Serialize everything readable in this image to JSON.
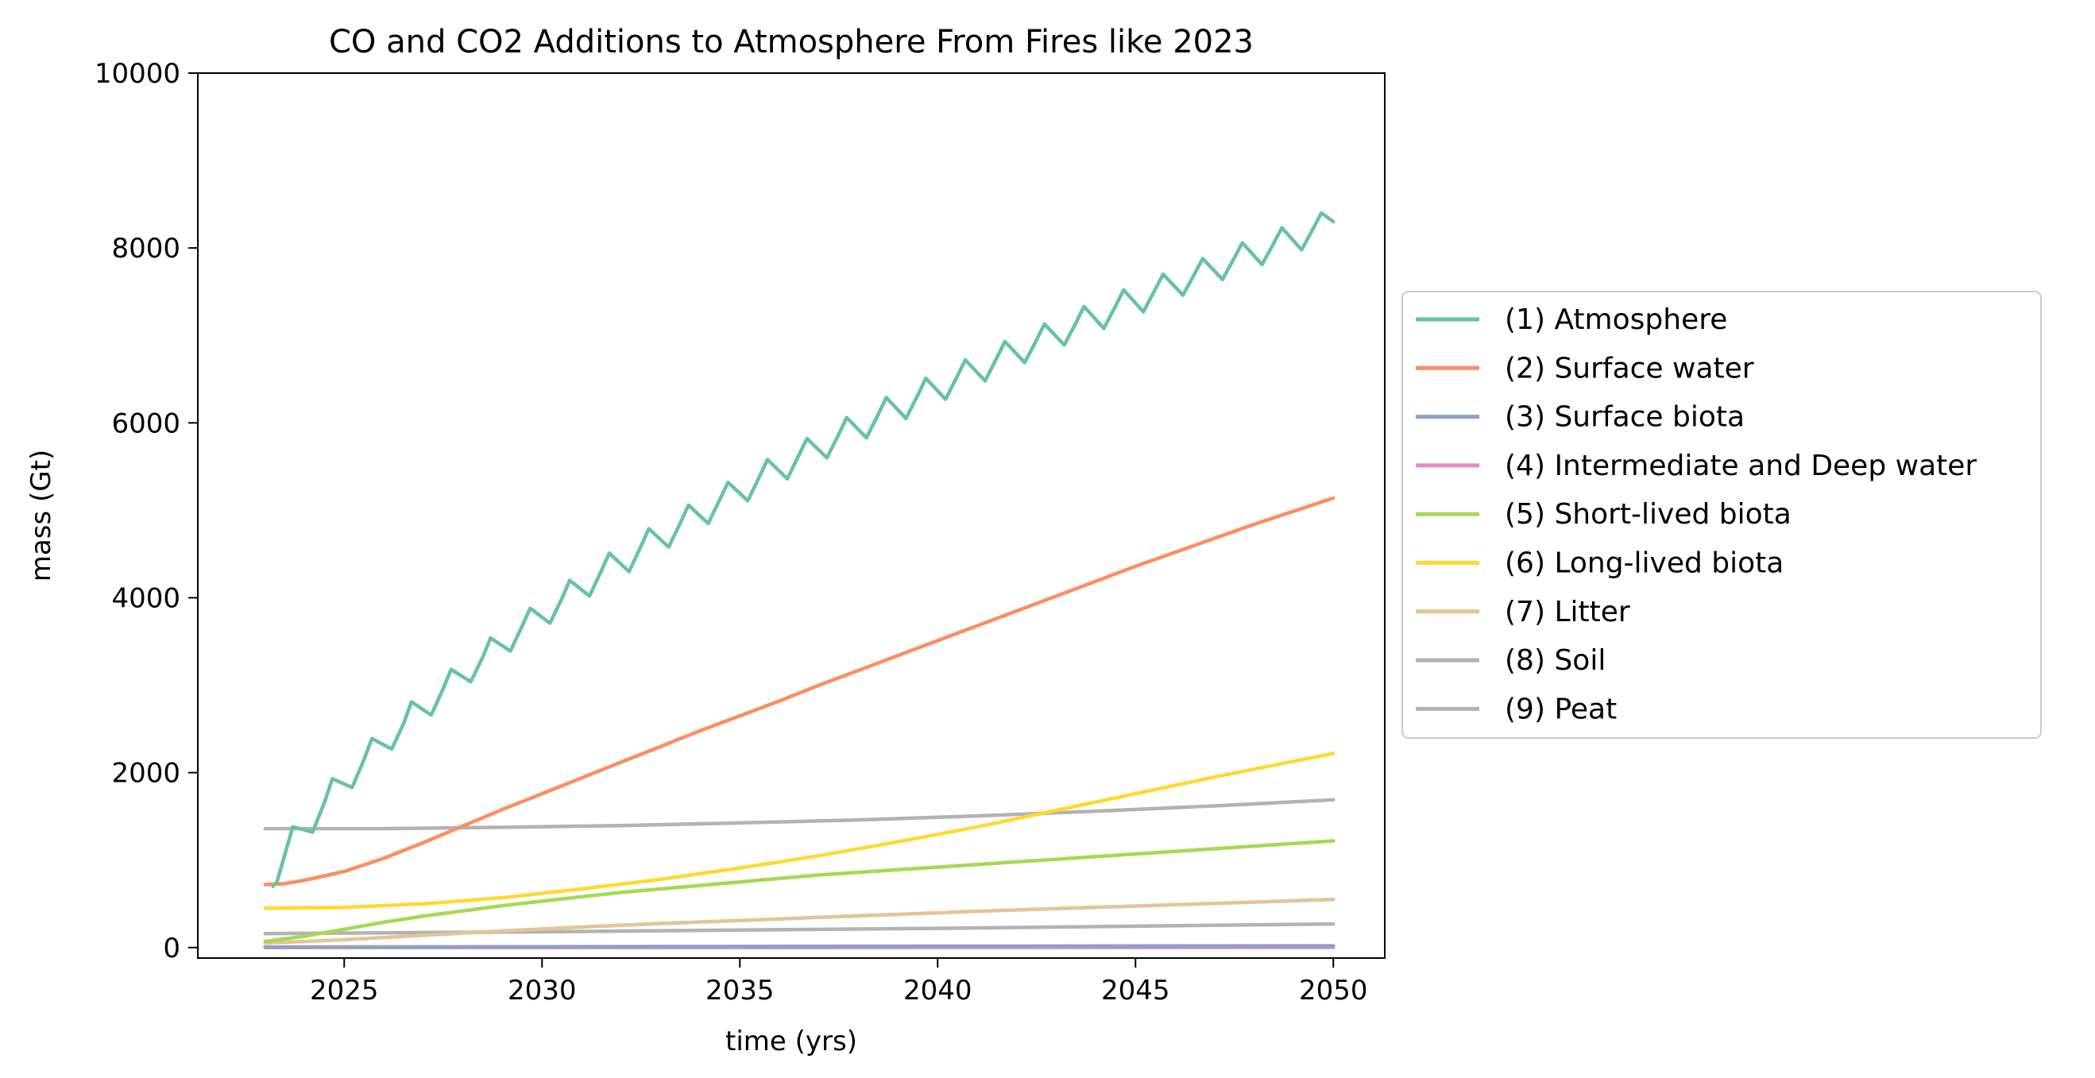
{
  "chart_data": {
    "type": "line",
    "title": "CO and CO2 Additions to Atmosphere From Fires like 2023",
    "xlabel": "time (yrs)",
    "ylabel": "mass (Gt)",
    "xlim": [
      2021.3,
      2051.3
    ],
    "ylim": [
      -120,
      10000
    ],
    "xticks": [
      2025,
      2030,
      2035,
      2040,
      2045,
      2050
    ],
    "yticks": [
      0,
      2000,
      4000,
      6000,
      8000,
      10000
    ],
    "legend_position": "right",
    "grid": false,
    "series": [
      {
        "name": "(1) Atmosphere",
        "color": "#66c2a5",
        "x": [
          2023.2,
          2023.3,
          2023.7,
          2024.2,
          2024.5,
          2024.7,
          2025.2,
          2025.5,
          2025.7,
          2026.2,
          2026.5,
          2026.7,
          2027.2,
          2027.5,
          2027.7,
          2028.2,
          2028.5,
          2028.7,
          2029.2,
          2029.5,
          2029.7,
          2030.2,
          2030.5,
          2030.7,
          2031.2,
          2031.5,
          2031.7,
          2032.2,
          2032.5,
          2032.7,
          2033.2,
          2033.5,
          2033.7,
          2034.2,
          2034.5,
          2034.7,
          2035.2,
          2035.5,
          2035.7,
          2036.2,
          2036.5,
          2036.7,
          2037.2,
          2037.5,
          2037.7,
          2038.2,
          2038.5,
          2038.7,
          2039.2,
          2039.5,
          2039.7,
          2040.2,
          2040.5,
          2040.7,
          2041.2,
          2041.5,
          2041.7,
          2042.2,
          2042.5,
          2042.7,
          2043.2,
          2043.5,
          2043.7,
          2044.2,
          2044.5,
          2044.7,
          2045.2,
          2045.5,
          2045.7,
          2046.2,
          2046.5,
          2046.7,
          2047.2,
          2047.5,
          2047.7,
          2048.2,
          2048.5,
          2048.7,
          2049.2,
          2049.5,
          2049.7,
          2050.0
        ],
        "y": [
          700,
          750,
          1380,
          1320,
          1660,
          1930,
          1830,
          2150,
          2390,
          2270,
          2560,
          2810,
          2660,
          2960,
          3180,
          3040,
          3320,
          3540,
          3390,
          3680,
          3880,
          3710,
          3990,
          4200,
          4020,
          4310,
          4510,
          4300,
          4590,
          4790,
          4580,
          4860,
          5060,
          4850,
          5130,
          5320,
          5110,
          5390,
          5580,
          5360,
          5640,
          5820,
          5600,
          5870,
          6060,
          5830,
          6100,
          6290,
          6050,
          6320,
          6510,
          6270,
          6540,
          6720,
          6480,
          6750,
          6930,
          6690,
          6950,
          7130,
          6890,
          7150,
          7330,
          7080,
          7340,
          7520,
          7270,
          7530,
          7700,
          7460,
          7710,
          7880,
          7640,
          7890,
          8060,
          7810,
          8060,
          8230,
          7980,
          8230,
          8400,
          8300
        ]
      },
      {
        "name": "(2) Surface water",
        "color": "#fc8d62",
        "x": [
          2023,
          2023.5,
          2024,
          2025,
          2026,
          2027,
          2028,
          2029,
          2030,
          2031,
          2032,
          2033,
          2034,
          2035,
          2036,
          2037,
          2038,
          2039,
          2040,
          2041,
          2042,
          2043,
          2044,
          2045,
          2046,
          2047,
          2048,
          2049,
          2050
        ],
        "y": [
          720,
          730,
          770,
          870,
          1020,
          1200,
          1390,
          1580,
          1760,
          1940,
          2120,
          2300,
          2480,
          2650,
          2820,
          3000,
          3170,
          3340,
          3510,
          3680,
          3850,
          4020,
          4190,
          4360,
          4520,
          4680,
          4840,
          4990,
          5140
        ]
      },
      {
        "name": "(3) Surface biota",
        "color": "#8da0cb",
        "x": [
          2023,
          2030,
          2040,
          2050
        ],
        "y": [
          5,
          10,
          15,
          20
        ]
      },
      {
        "name": "(4) Intermediate and Deep water",
        "color": "#e78ac3",
        "x": [
          2023,
          2050
        ],
        "y": [
          0,
          2
        ]
      },
      {
        "name": "(5) Short-lived biota",
        "color": "#a6d854",
        "x": [
          2023,
          2024,
          2025,
          2026,
          2027,
          2028,
          2029,
          2030,
          2031,
          2032,
          2033,
          2034,
          2035,
          2036,
          2037,
          2038,
          2039,
          2040,
          2041,
          2042,
          2043,
          2044,
          2045,
          2046,
          2047,
          2048,
          2049,
          2050
        ],
        "y": [
          70,
          130,
          210,
          290,
          360,
          420,
          480,
          530,
          580,
          630,
          670,
          710,
          750,
          790,
          830,
          860,
          890,
          920,
          950,
          980,
          1010,
          1040,
          1070,
          1100,
          1130,
          1160,
          1190,
          1220
        ]
      },
      {
        "name": "(6) Long-lived biota",
        "color": "#ffd92f",
        "x": [
          2023,
          2025,
          2027,
          2029,
          2031,
          2033,
          2035,
          2037,
          2039,
          2041,
          2043,
          2045,
          2047,
          2049,
          2050
        ],
        "y": [
          450,
          460,
          500,
          570,
          670,
          780,
          910,
          1050,
          1210,
          1380,
          1570,
          1760,
          1950,
          2130,
          2220
        ]
      },
      {
        "name": "(7) Litter",
        "color": "#e5c494",
        "x": [
          2023,
          2025,
          2027,
          2029,
          2031,
          2033,
          2035,
          2037,
          2039,
          2041,
          2043,
          2045,
          2047,
          2049,
          2050
        ],
        "y": [
          50,
          90,
          140,
          190,
          235,
          275,
          310,
          345,
          380,
          415,
          445,
          475,
          505,
          535,
          550
        ]
      },
      {
        "name": "(8) Soil",
        "color": "#b3b3b3",
        "x": [
          2023,
          2030,
          2040,
          2050
        ],
        "y": [
          160,
          180,
          220,
          270
        ]
      },
      {
        "name": "(9) Peat",
        "color": "#b3b3b3",
        "x": [
          2023,
          2026,
          2029,
          2032,
          2035,
          2038,
          2041,
          2044,
          2047,
          2050
        ],
        "y": [
          1360,
          1360,
          1375,
          1395,
          1425,
          1460,
          1505,
          1560,
          1620,
          1690
        ]
      }
    ]
  }
}
